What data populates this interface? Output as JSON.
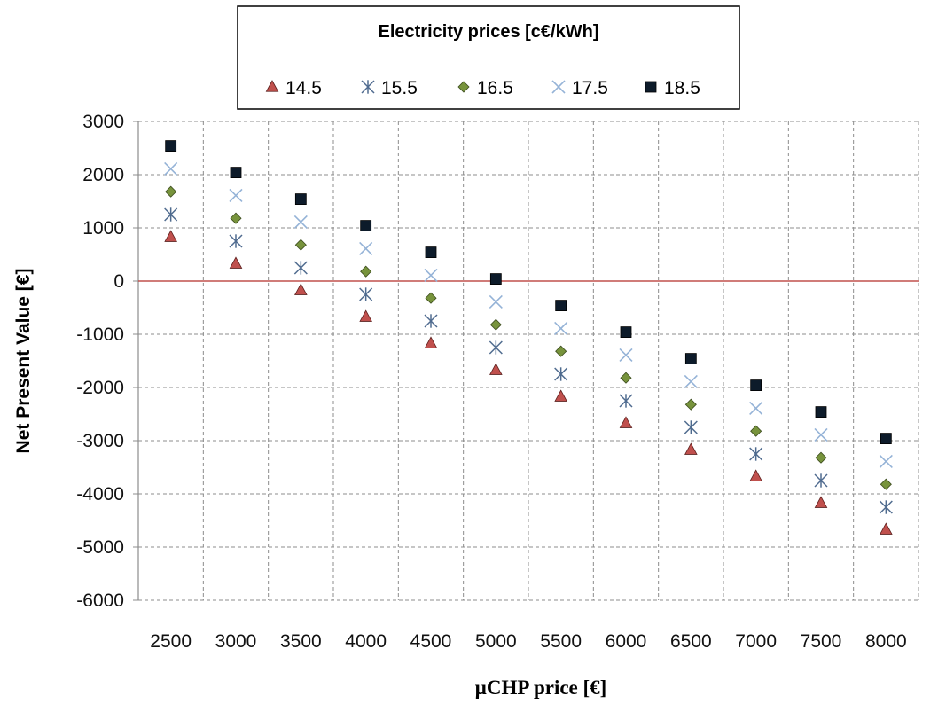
{
  "chart_data": {
    "type": "scatter",
    "title": "",
    "xlabel": "µCHP price [€]",
    "ylabel": "Net Present Value [€]",
    "legend_title": "Electricity prices [c€/kWh]",
    "legend_position": "top",
    "x": [
      2500,
      3000,
      3500,
      4000,
      4500,
      5000,
      5500,
      6000,
      6500,
      7000,
      7500,
      8000
    ],
    "x_tick_labels": [
      "2500",
      "3000",
      "3500",
      "4000",
      "4500",
      "5000",
      "5500",
      "6000",
      "6500",
      "7000",
      "7500",
      "8000"
    ],
    "y_ticks": [
      3000,
      2000,
      1000,
      0,
      -1000,
      -2000,
      -3000,
      -4000,
      -5000,
      -6000
    ],
    "y_tick_labels": [
      "3000",
      "2000",
      "1000",
      "0",
      "-1000",
      "-2000",
      "-3000",
      "-4000",
      "-5000",
      "-6000"
    ],
    "ylim": [
      -6000,
      3000
    ],
    "grid": true,
    "zero_line_color": "#c0504d",
    "series": [
      {
        "name": "14.5",
        "marker": "triangle",
        "color": "#c0504d",
        "values": [
          830,
          330,
          -170,
          -670,
          -1170,
          -1670,
          -2170,
          -2670,
          -3170,
          -3670,
          -4170,
          -4670
        ]
      },
      {
        "name": "15.5",
        "marker": "star",
        "color": "#4f6b8f",
        "values": [
          1250,
          750,
          250,
          -250,
          -750,
          -1250,
          -1750,
          -2250,
          -2750,
          -3250,
          -3750,
          -4250
        ]
      },
      {
        "name": "16.5",
        "marker": "diamond",
        "color": "#77933c",
        "values": [
          1680,
          1180,
          680,
          180,
          -320,
          -820,
          -1320,
          -1820,
          -2320,
          -2820,
          -3320,
          -3820
        ]
      },
      {
        "name": "17.5",
        "marker": "x",
        "color": "#95b3d7",
        "values": [
          2110,
          1610,
          1110,
          610,
          110,
          -390,
          -890,
          -1390,
          -1890,
          -2390,
          -2890,
          -3390
        ]
      },
      {
        "name": "18.5",
        "marker": "square",
        "color": "#0d1b2a",
        "values": [
          2540,
          2040,
          1540,
          1040,
          540,
          40,
          -460,
          -960,
          -1460,
          -1960,
          -2460,
          -2960
        ]
      }
    ]
  }
}
